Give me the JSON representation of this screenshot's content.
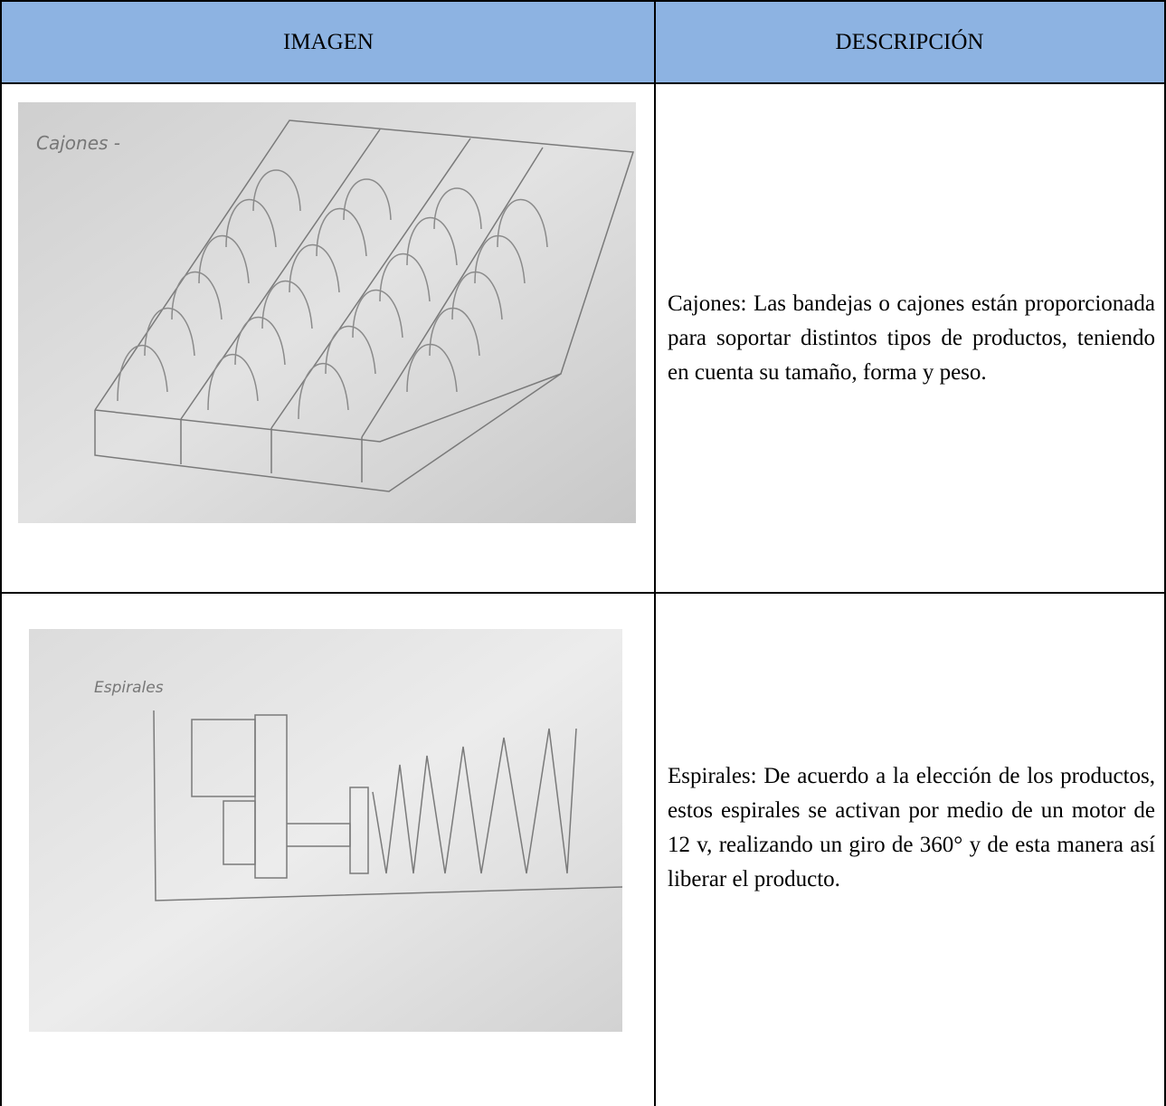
{
  "table": {
    "header": [
      "IMAGEN",
      "DESCRIPCIÓN"
    ],
    "rows": [
      {
        "image_label": "Cajones -",
        "description": "Cajones: Las bandejas o cajones están proporcionada para soportar distintos tipos de productos, teniendo en cuenta su tamaño, forma y peso."
      },
      {
        "image_label": "Espirales",
        "description": "Espirales: De acuerdo a la elección de los productos, estos espirales se activan por medio de un motor de 12 v, realizando un giro de 360° y de esta manera así liberar el producto."
      }
    ]
  }
}
